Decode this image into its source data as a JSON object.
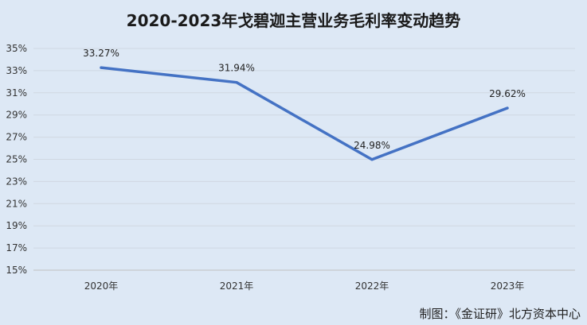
{
  "chart_data": {
    "type": "line",
    "title": "2020-2023年戈碧迦主营业务毛利率变动趋势",
    "categories": [
      "2020年",
      "2021年",
      "2022年",
      "2023年"
    ],
    "series": [
      {
        "values": [
          33.27,
          31.94,
          24.98,
          29.62
        ]
      }
    ],
    "data_labels": [
      "33.27%",
      "31.94%",
      "24.98%",
      "29.62%"
    ],
    "y_ticks": [
      "15%",
      "17%",
      "19%",
      "21%",
      "23%",
      "25%",
      "27%",
      "29%",
      "31%",
      "33%",
      "35%"
    ],
    "ylim": [
      15,
      35
    ],
    "grid": true,
    "line_color": "#4472c4"
  },
  "footer": {
    "source": "制图：《金证研》北方资本中心"
  }
}
